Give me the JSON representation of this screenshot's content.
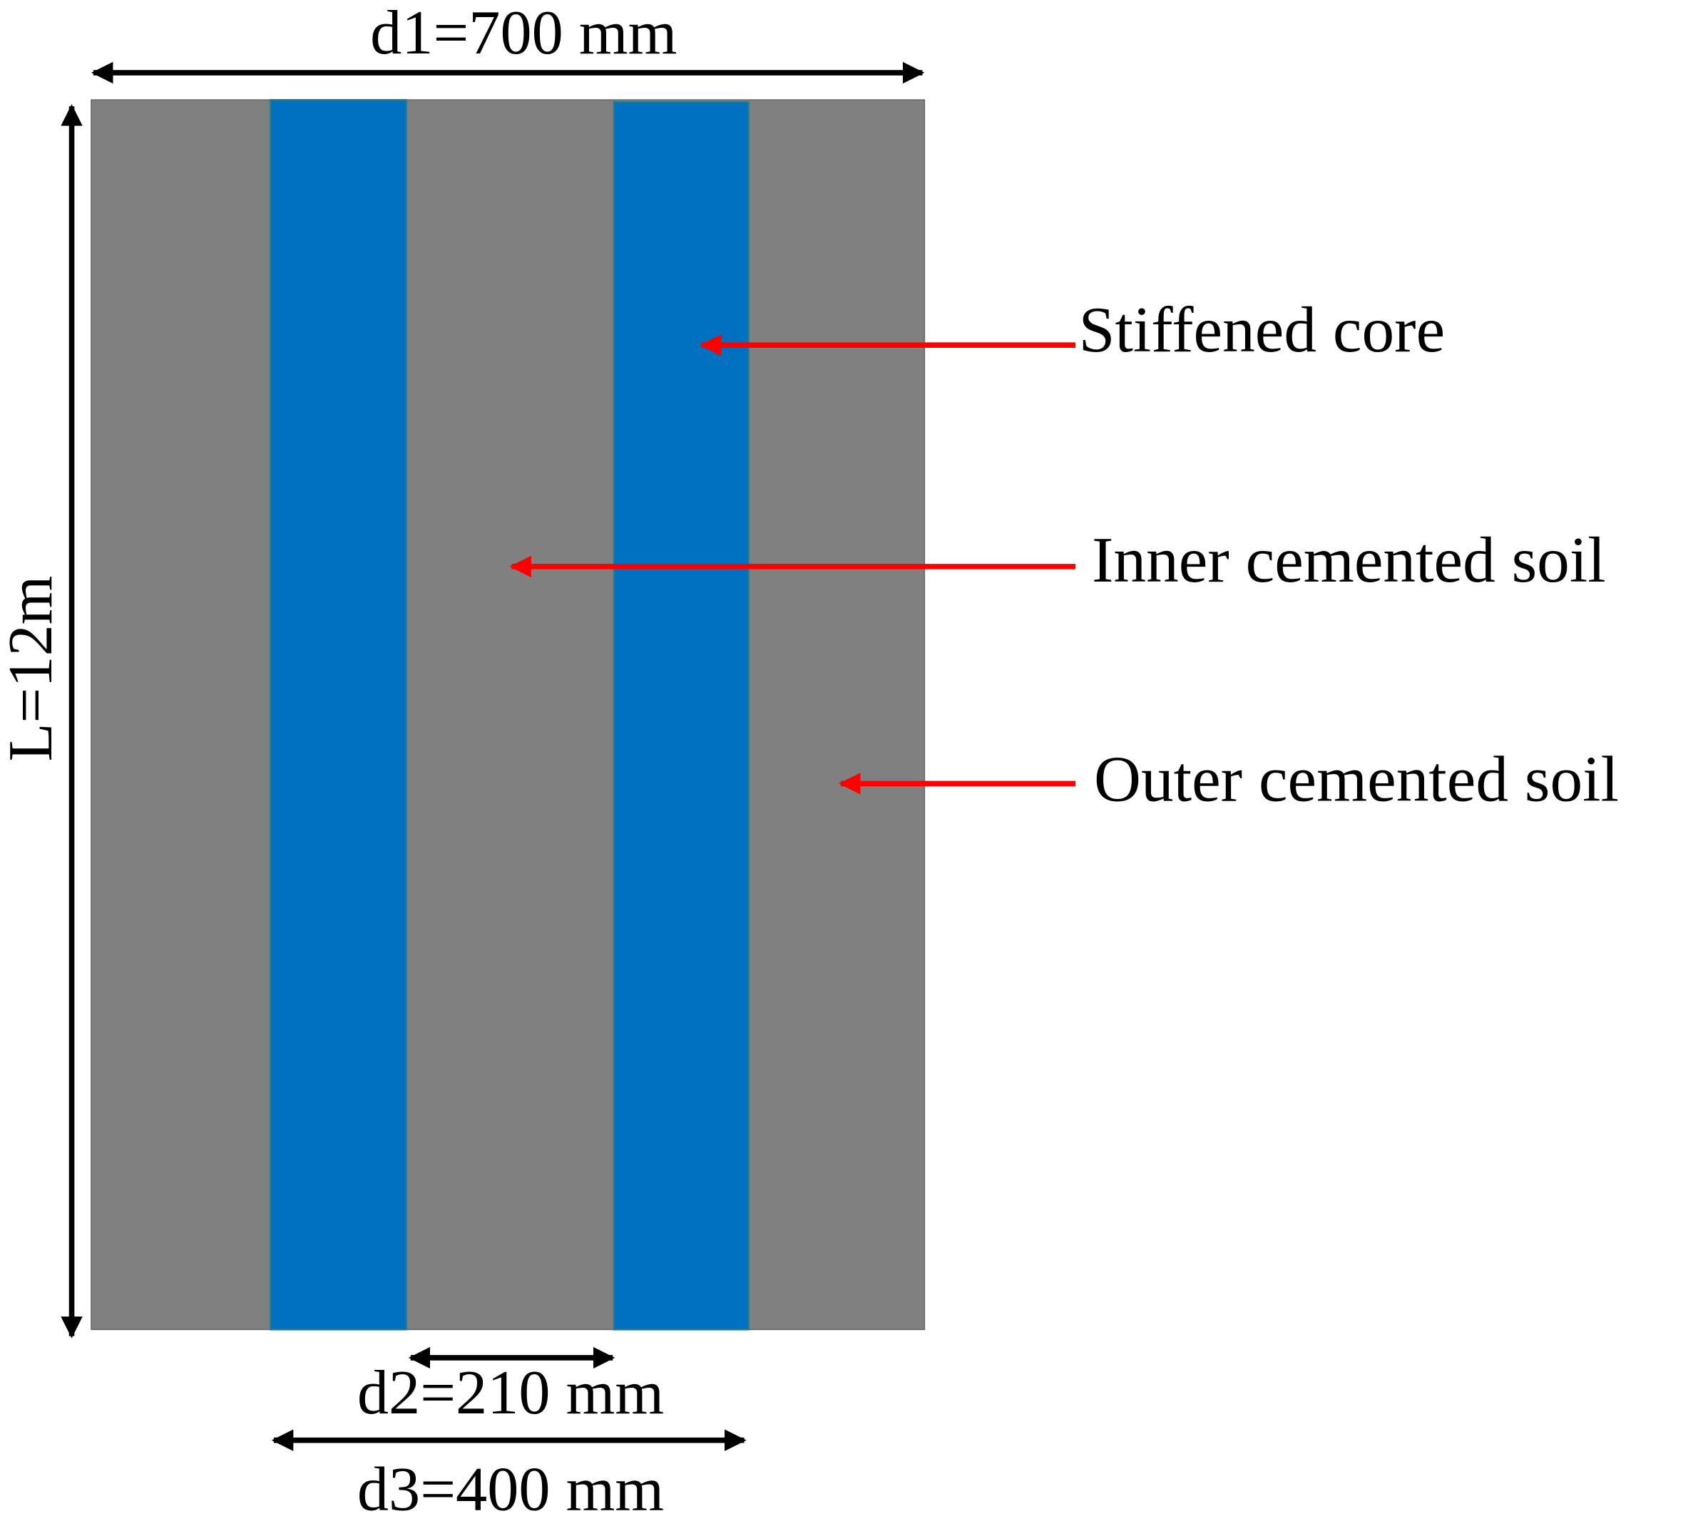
{
  "dimensions": {
    "d1": "d1=700 mm",
    "length": "L=12m",
    "d2": "d2=210 mm",
    "d3": "d3=400 mm"
  },
  "labels": [
    "Stiffened core",
    "Inner cemented soil",
    "Outer cemented soil"
  ]
}
